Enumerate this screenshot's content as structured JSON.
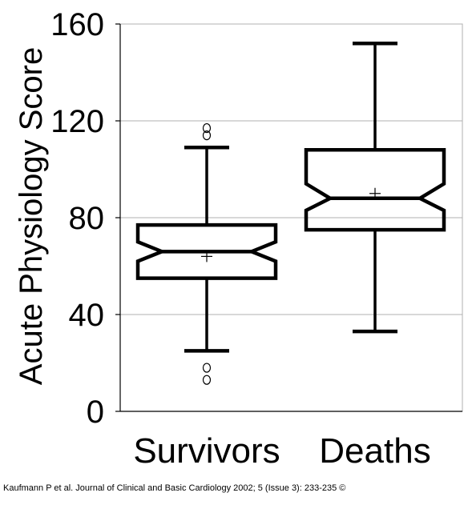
{
  "chart_data": {
    "type": "boxplot",
    "title": "",
    "ylabel": "Acute Physiology Score",
    "xlabel": "",
    "ylim": [
      0,
      160
    ],
    "yticks": [
      0,
      40,
      80,
      120,
      160
    ],
    "grid": true,
    "notched": true,
    "categories": [
      "Survivors",
      "Deaths"
    ],
    "groups": [
      {
        "name": "Survivors",
        "whisker_low": 25,
        "q1": 55,
        "notch_low": 62,
        "median": 66,
        "notch_high": 70,
        "q3": 77,
        "whisker_high": 109,
        "mean": 64,
        "outliers": [
          13,
          18,
          114,
          117
        ]
      },
      {
        "name": "Deaths",
        "whisker_low": 33,
        "q1": 75,
        "notch_low": 83,
        "median": 88,
        "notch_high": 94,
        "q3": 108,
        "whisker_high": 152,
        "mean": 90,
        "outliers": []
      }
    ]
  },
  "caption": "Kaufmann P et al. Journal of Clinical and Basic Cardiology 2002; 5 (Issue 3): 233-235 ©"
}
